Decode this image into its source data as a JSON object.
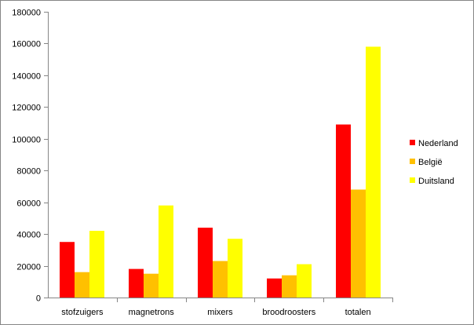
{
  "chart_data": {
    "type": "bar",
    "categories": [
      "stofzuigers",
      "magnetrons",
      "mixers",
      "broodroosters",
      "totalen"
    ],
    "series": [
      {
        "name": "Nederland",
        "color": "#ff0000",
        "values": [
          35000,
          18000,
          44000,
          12000,
          109000
        ]
      },
      {
        "name": "België",
        "color": "#ffc000",
        "values": [
          16000,
          15000,
          23000,
          14000,
          68000
        ]
      },
      {
        "name": "Duitsland",
        "color": "#ffff00",
        "values": [
          42000,
          58000,
          37000,
          21000,
          158000
        ]
      }
    ],
    "ylim": [
      0,
      180000
    ],
    "ytick_step": 20000,
    "yticks": [
      "0",
      "20000",
      "40000",
      "60000",
      "80000",
      "100000",
      "120000",
      "140000",
      "160000",
      "180000"
    ],
    "grid": false,
    "legend_position": "right"
  }
}
